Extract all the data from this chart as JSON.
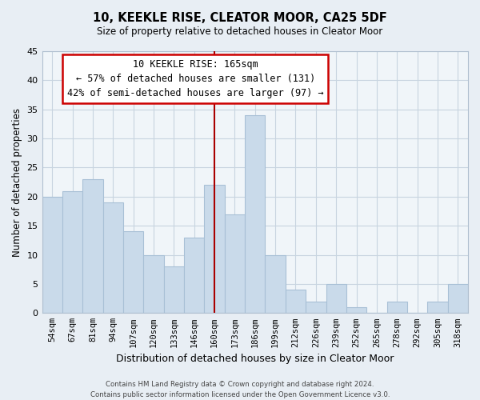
{
  "title": "10, KEEKLE RISE, CLEATOR MOOR, CA25 5DF",
  "subtitle": "Size of property relative to detached houses in Cleator Moor",
  "xlabel": "Distribution of detached houses by size in Cleator Moor",
  "ylabel": "Number of detached properties",
  "bin_labels": [
    "54sqm",
    "67sqm",
    "81sqm",
    "94sqm",
    "107sqm",
    "120sqm",
    "133sqm",
    "146sqm",
    "160sqm",
    "173sqm",
    "186sqm",
    "199sqm",
    "212sqm",
    "226sqm",
    "239sqm",
    "252sqm",
    "265sqm",
    "278sqm",
    "292sqm",
    "305sqm",
    "318sqm"
  ],
  "bar_values": [
    20,
    21,
    23,
    19,
    14,
    10,
    8,
    13,
    22,
    17,
    34,
    10,
    4,
    2,
    5,
    1,
    0,
    2,
    0,
    2,
    5
  ],
  "bar_color": "#c9daea",
  "bar_edge_color": "#a8c0d6",
  "vline_x_index": 8,
  "vline_color": "#aa0000",
  "ylim": [
    0,
    45
  ],
  "yticks": [
    0,
    5,
    10,
    15,
    20,
    25,
    30,
    35,
    40,
    45
  ],
  "annotation_title": "10 KEEKLE RISE: 165sqm",
  "annotation_line1": "← 57% of detached houses are smaller (131)",
  "annotation_line2": "42% of semi-detached houses are larger (97) →",
  "footer_line1": "Contains HM Land Registry data © Crown copyright and database right 2024.",
  "footer_line2": "Contains public sector information licensed under the Open Government Licence v3.0.",
  "bg_color": "#e8eef4",
  "plot_bg_color": "#f0f5f9",
  "grid_color": "#c8d4e0",
  "spine_color": "#b0c0d0"
}
